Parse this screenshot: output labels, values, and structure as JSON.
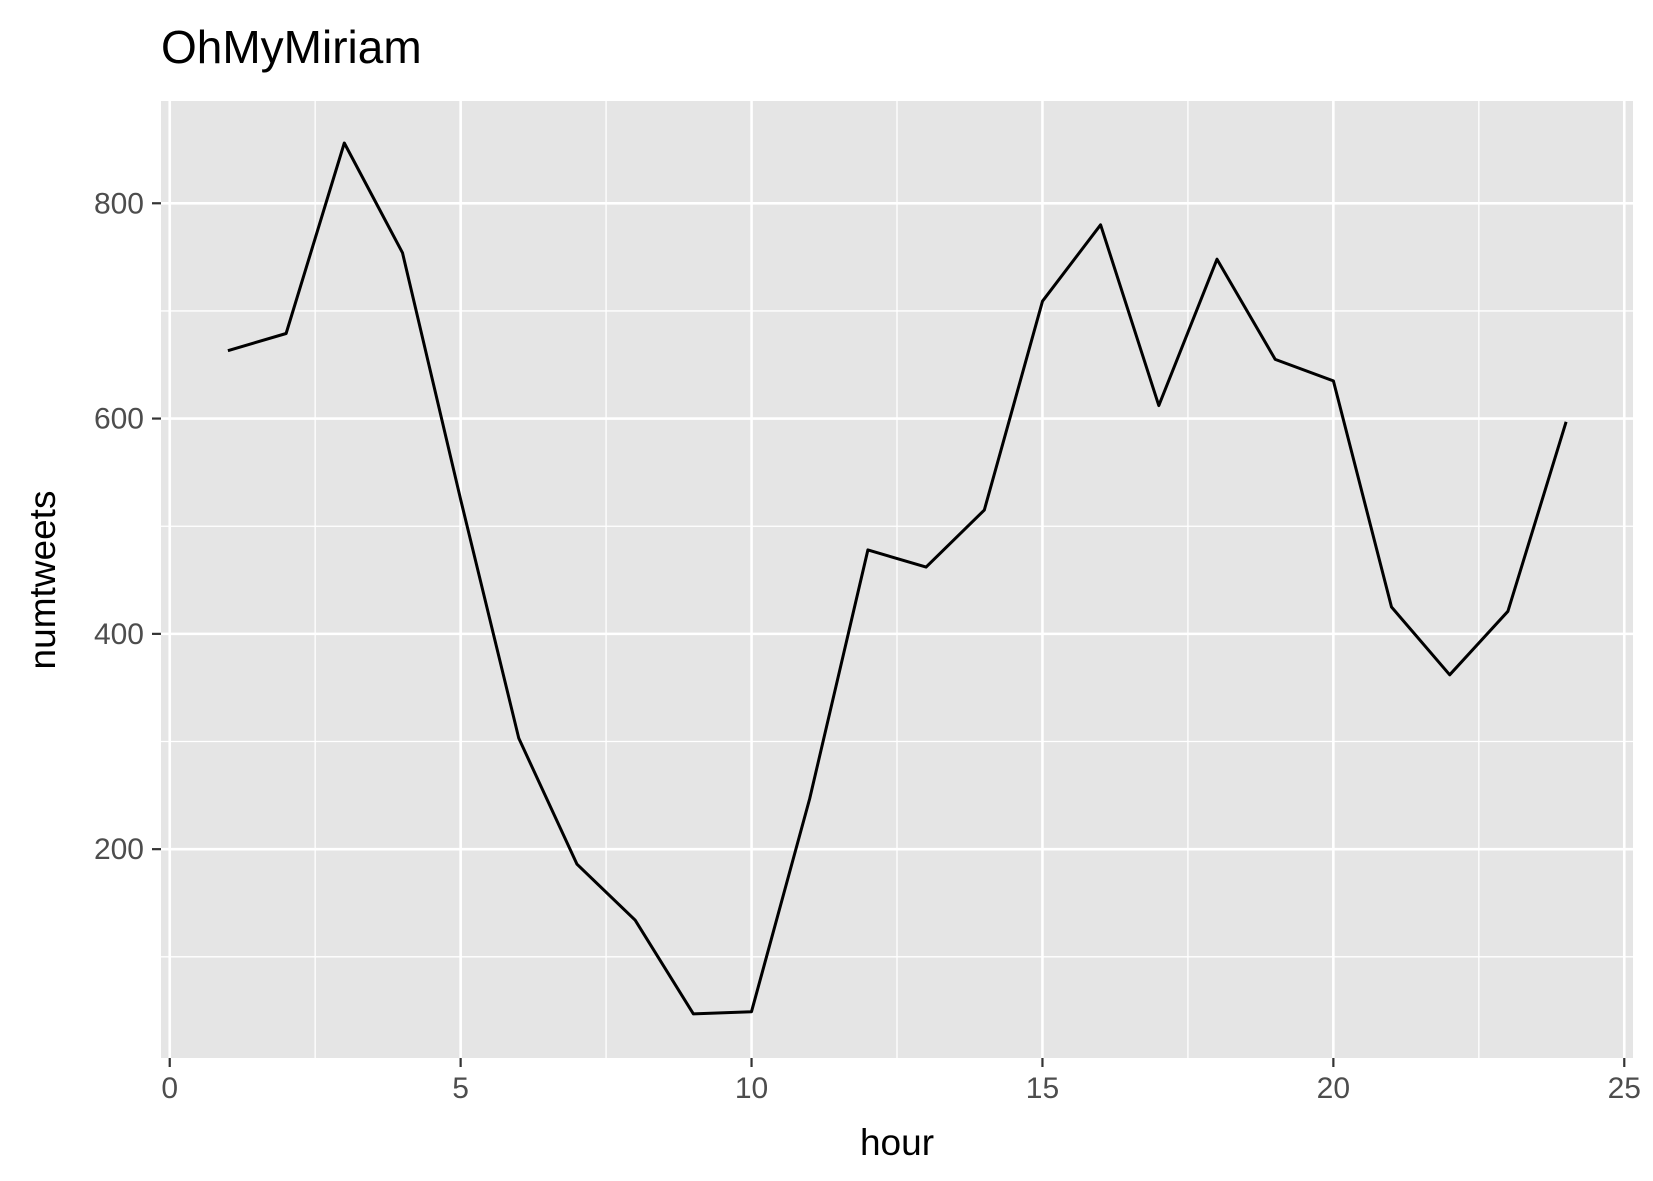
{
  "chart_data": {
    "type": "line",
    "title": "OhMyMiriam",
    "xlabel": "hour",
    "ylabel": "numtweets",
    "xlim": [
      -0.15,
      25.15
    ],
    "ylim": [
      6,
      895
    ],
    "x_ticks": [
      0,
      5,
      10,
      15,
      20,
      25
    ],
    "x_tick_labels": [
      "0",
      "5",
      "10",
      "15",
      "20",
      "25"
    ],
    "y_ticks": [
      200,
      400,
      600,
      800
    ],
    "y_tick_labels": [
      "200",
      "400",
      "600",
      "800"
    ],
    "x_minor_ticks": [
      2.5,
      7.5,
      12.5,
      17.5,
      22.5
    ],
    "y_minor_ticks": [
      100,
      300,
      500,
      700
    ],
    "grid": true,
    "background": "#e5e5e5",
    "line_color": "#000000",
    "x": [
      1,
      2,
      3,
      4,
      5,
      6,
      7,
      8,
      9,
      10,
      11,
      12,
      13,
      14,
      15,
      16,
      17,
      18,
      19,
      20,
      21,
      22,
      23,
      24
    ],
    "values": [
      663,
      679,
      856,
      754,
      525,
      303,
      186,
      134,
      47,
      49,
      247,
      478,
      462,
      515,
      709,
      780,
      612,
      748,
      655,
      635,
      425,
      362,
      421,
      597
    ]
  }
}
